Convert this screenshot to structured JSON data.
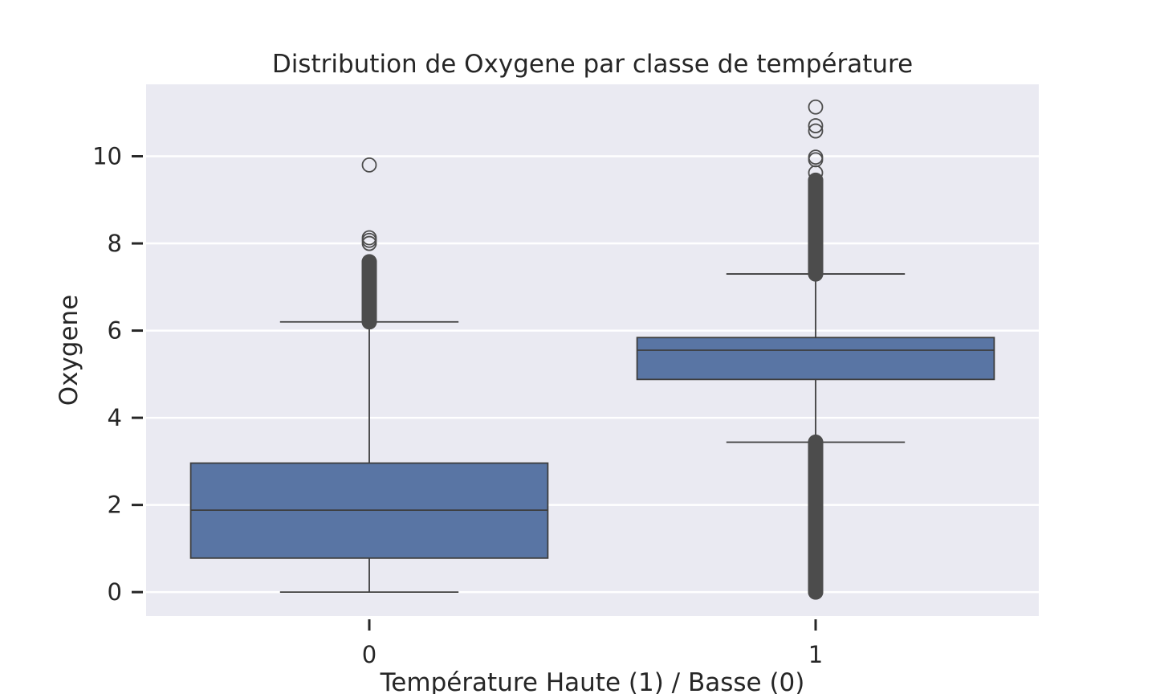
{
  "chart_data": {
    "type": "box",
    "title": "Distribution de Oxygene par classe de température",
    "xlabel": "Température Haute (1) / Basse (0)",
    "ylabel": "Oxygene",
    "categories": [
      "0",
      "1"
    ],
    "ylim": [
      -0.55,
      11.65
    ],
    "yticks": [
      0,
      2,
      4,
      6,
      8,
      10
    ],
    "ytick_labels": [
      "0",
      "2",
      "4",
      "6",
      "8",
      "10"
    ],
    "grid": true,
    "colors": {
      "background": "#EAEAF2",
      "box_fill": "#5975A4",
      "line": "#3D3D3D",
      "grid": "#FFFFFF",
      "outlier": "#4C4C4C"
    },
    "boxes": [
      {
        "category": "0",
        "whisker_low": 0.0,
        "q1": 0.78,
        "median": 1.88,
        "q3": 2.96,
        "whisker_high": 6.2,
        "outliers_high": [
          6.2,
          6.3,
          6.4,
          6.5,
          6.6,
          6.7,
          6.8,
          6.9,
          7.0,
          7.1,
          7.2,
          7.35,
          7.5,
          7.58,
          8.0,
          8.07,
          8.13,
          9.8
        ],
        "outliers_low": []
      },
      {
        "category": "1",
        "whisker_low": 3.44,
        "q1": 4.88,
        "median": 5.55,
        "q3": 5.84,
        "whisker_high": 7.3,
        "outliers_high": [
          7.3,
          7.4,
          7.5,
          7.6,
          7.7,
          7.8,
          7.9,
          8.0,
          8.1,
          8.2,
          8.3,
          8.4,
          8.5,
          8.6,
          8.7,
          8.8,
          8.9,
          9.0,
          9.1,
          9.2,
          9.3,
          9.45,
          9.62,
          9.92,
          9.98,
          10.58,
          10.7,
          11.13
        ],
        "outliers_low": [
          3.44,
          3.3,
          3.1,
          2.9,
          2.7,
          2.5,
          2.3,
          2.1,
          1.9,
          1.7,
          1.5,
          1.3,
          1.1,
          0.9,
          0.7,
          0.5,
          0.3,
          0.15,
          0.0
        ]
      }
    ]
  }
}
